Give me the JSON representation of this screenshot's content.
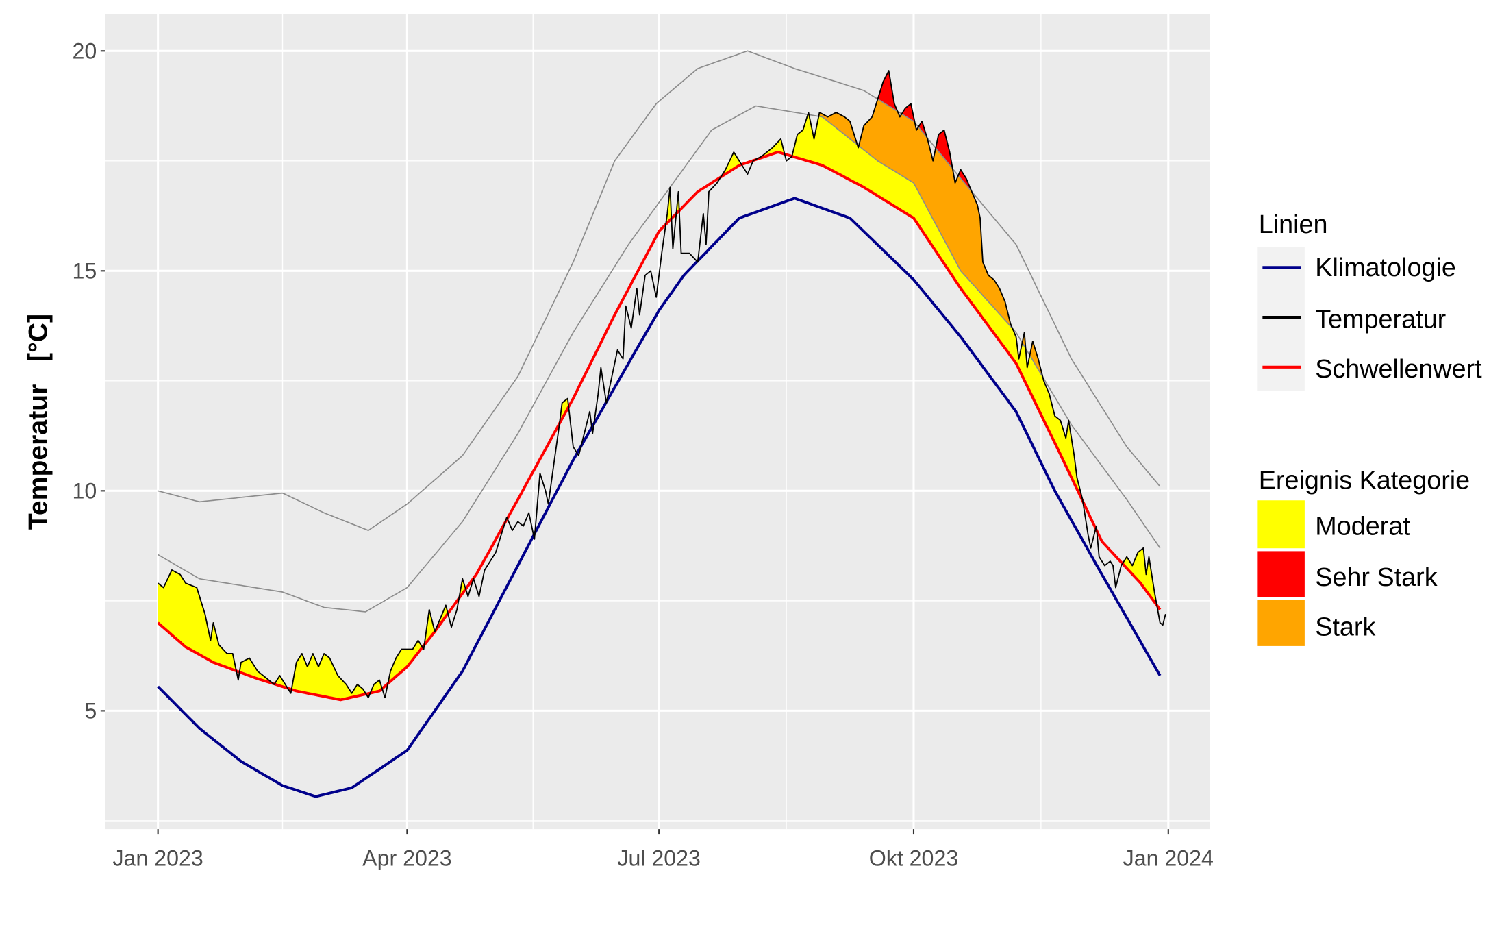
{
  "chart_data": {
    "type": "line",
    "title": "",
    "xlabel": "",
    "ylabel": "Temperatur   [°C]",
    "xlim_days": [
      -19,
      380
    ],
    "ylim": [
      2.31,
      20.83
    ],
    "grid": true,
    "x_ticks": [
      {
        "day": 0,
        "label": "Jan 2023"
      },
      {
        "day": 90,
        "label": "Apr 2023"
      },
      {
        "day": 181,
        "label": "Jul 2023"
      },
      {
        "day": 273,
        "label": "Okt 2023"
      },
      {
        "day": 365,
        "label": "Jan 2024"
      }
    ],
    "x_minor_days": [
      45,
      135.5,
      227,
      319
    ],
    "y_ticks": [
      5,
      10,
      15,
      20
    ],
    "y_minor": [
      2.5,
      7.5,
      12.5,
      17.5
    ],
    "y_tick_labels": [
      "5",
      "10",
      "15",
      "20"
    ],
    "colors": {
      "klimatologie": "#00008b",
      "temperatur": "#000000",
      "schwellenwert": "#ff0000",
      "guide": "#8c8c8c",
      "moderat": "#ffff00",
      "stark": "#ffa500",
      "sehr_stark": "#ff0000",
      "panel": "#ebebeb"
    },
    "series": [
      {
        "name": "Klimatologie",
        "points": [
          [
            0,
            5.55
          ],
          [
            15,
            4.6
          ],
          [
            30,
            3.85
          ],
          [
            45,
            3.3
          ],
          [
            57,
            3.05
          ],
          [
            70,
            3.25
          ],
          [
            90,
            4.1
          ],
          [
            110,
            5.9
          ],
          [
            130,
            8.3
          ],
          [
            150,
            10.7
          ],
          [
            170,
            12.9
          ],
          [
            181,
            14.1
          ],
          [
            190,
            14.9
          ],
          [
            210,
            16.2
          ],
          [
            230,
            16.65
          ],
          [
            250,
            16.2
          ],
          [
            273,
            14.8
          ],
          [
            290,
            13.5
          ],
          [
            310,
            11.8
          ],
          [
            324,
            10.0
          ],
          [
            341,
            8.1
          ],
          [
            362,
            5.8
          ]
        ]
      },
      {
        "name": "Schwellenwert",
        "points": [
          [
            0,
            7.0
          ],
          [
            10,
            6.45
          ],
          [
            20,
            6.1
          ],
          [
            35,
            5.75
          ],
          [
            50,
            5.45
          ],
          [
            66,
            5.25
          ],
          [
            80,
            5.45
          ],
          [
            90,
            6.0
          ],
          [
            100,
            6.8
          ],
          [
            115,
            8.1
          ],
          [
            130,
            9.8
          ],
          [
            150,
            12.1
          ],
          [
            165,
            14.0
          ],
          [
            181,
            15.9
          ],
          [
            195,
            16.8
          ],
          [
            210,
            17.4
          ],
          [
            224,
            17.7
          ],
          [
            240,
            17.4
          ],
          [
            255,
            16.9
          ],
          [
            273,
            16.2
          ],
          [
            290,
            14.6
          ],
          [
            310,
            12.9
          ],
          [
            327,
            10.7
          ],
          [
            341,
            8.85
          ],
          [
            355,
            7.9
          ],
          [
            362,
            7.3
          ]
        ]
      },
      {
        "name": "Stark-Grenze",
        "points": [
          [
            0,
            8.55
          ],
          [
            15,
            8.0
          ],
          [
            45,
            7.7
          ],
          [
            60,
            7.35
          ],
          [
            75,
            7.25
          ],
          [
            90,
            7.8
          ],
          [
            110,
            9.3
          ],
          [
            130,
            11.3
          ],
          [
            150,
            13.6
          ],
          [
            170,
            15.6
          ],
          [
            185,
            16.9
          ],
          [
            200,
            18.2
          ],
          [
            216,
            18.75
          ],
          [
            240,
            18.5
          ],
          [
            260,
            17.5
          ],
          [
            273,
            17.0
          ],
          [
            290,
            15.0
          ],
          [
            310,
            13.6
          ],
          [
            330,
            11.5
          ],
          [
            350,
            9.8
          ],
          [
            362,
            8.7
          ]
        ]
      },
      {
        "name": "Sehr-Stark-Grenze",
        "points": [
          [
            0,
            10.0
          ],
          [
            15,
            9.75
          ],
          [
            30,
            9.85
          ],
          [
            45,
            9.95
          ],
          [
            60,
            9.5
          ],
          [
            76,
            9.1
          ],
          [
            90,
            9.7
          ],
          [
            110,
            10.8
          ],
          [
            130,
            12.6
          ],
          [
            150,
            15.2
          ],
          [
            165,
            17.5
          ],
          [
            180,
            18.8
          ],
          [
            195,
            19.6
          ],
          [
            213,
            20.0
          ],
          [
            230,
            19.6
          ],
          [
            255,
            19.1
          ],
          [
            273,
            18.4
          ],
          [
            290,
            17.1
          ],
          [
            310,
            15.6
          ],
          [
            330,
            13.0
          ],
          [
            350,
            11.0
          ],
          [
            362,
            10.1
          ]
        ]
      },
      {
        "name": "Temperatur",
        "points": [
          [
            0,
            7.9
          ],
          [
            2,
            7.8
          ],
          [
            5,
            8.2
          ],
          [
            8,
            8.1
          ],
          [
            10,
            7.9
          ],
          [
            14,
            7.8
          ],
          [
            17,
            7.2
          ],
          [
            19,
            6.6
          ],
          [
            20,
            7.0
          ],
          [
            22,
            6.5
          ],
          [
            25,
            6.3
          ],
          [
            27,
            6.3
          ],
          [
            29,
            5.7
          ],
          [
            30,
            6.1
          ],
          [
            33,
            6.2
          ],
          [
            36,
            5.9
          ],
          [
            40,
            5.7
          ],
          [
            42,
            5.6
          ],
          [
            44,
            5.8
          ],
          [
            46,
            5.6
          ],
          [
            48,
            5.4
          ],
          [
            50,
            6.1
          ],
          [
            52,
            6.3
          ],
          [
            54,
            6.0
          ],
          [
            56,
            6.3
          ],
          [
            58,
            6.0
          ],
          [
            60,
            6.3
          ],
          [
            62,
            6.2
          ],
          [
            65,
            5.8
          ],
          [
            68,
            5.6
          ],
          [
            70,
            5.4
          ],
          [
            72,
            5.6
          ],
          [
            74,
            5.5
          ],
          [
            76,
            5.3
          ],
          [
            78,
            5.6
          ],
          [
            80,
            5.7
          ],
          [
            82,
            5.3
          ],
          [
            84,
            5.9
          ],
          [
            86,
            6.2
          ],
          [
            88,
            6.4
          ],
          [
            92,
            6.4
          ],
          [
            94,
            6.6
          ],
          [
            96,
            6.4
          ],
          [
            98,
            7.3
          ],
          [
            100,
            6.8
          ],
          [
            102,
            7.1
          ],
          [
            104,
            7.4
          ],
          [
            106,
            6.9
          ],
          [
            108,
            7.3
          ],
          [
            110,
            8.0
          ],
          [
            112,
            7.6
          ],
          [
            114,
            8.0
          ],
          [
            116,
            7.6
          ],
          [
            118,
            8.2
          ],
          [
            120,
            8.4
          ],
          [
            122,
            8.6
          ],
          [
            124,
            9.0
          ],
          [
            126,
            9.4
          ],
          [
            128,
            9.1
          ],
          [
            130,
            9.3
          ],
          [
            132,
            9.2
          ],
          [
            134,
            9.5
          ],
          [
            136,
            8.9
          ],
          [
            138,
            10.4
          ],
          [
            140,
            10.0
          ],
          [
            141,
            9.7
          ],
          [
            143,
            10.6
          ],
          [
            145,
            11.5
          ],
          [
            146,
            12.0
          ],
          [
            148,
            12.1
          ],
          [
            150,
            11.0
          ],
          [
            152,
            10.8
          ],
          [
            154,
            11.3
          ],
          [
            156,
            11.8
          ],
          [
            157,
            11.3
          ],
          [
            159,
            12.2
          ],
          [
            160,
            12.8
          ],
          [
            162,
            12.0
          ],
          [
            164,
            12.6
          ],
          [
            166,
            13.2
          ],
          [
            168,
            13.0
          ],
          [
            169,
            14.2
          ],
          [
            171,
            13.7
          ],
          [
            173,
            14.6
          ],
          [
            174,
            14.0
          ],
          [
            176,
            14.9
          ],
          [
            178,
            15.0
          ],
          [
            180,
            14.4
          ],
          [
            182,
            15.4
          ],
          [
            184,
            16.3
          ],
          [
            185,
            16.9
          ],
          [
            186,
            15.5
          ],
          [
            188,
            16.8
          ],
          [
            189,
            15.4
          ],
          [
            192,
            15.4
          ],
          [
            195,
            15.2
          ],
          [
            197,
            16.3
          ],
          [
            198,
            15.6
          ],
          [
            199,
            16.8
          ],
          [
            202,
            17.0
          ],
          [
            205,
            17.3
          ],
          [
            208,
            17.7
          ],
          [
            211,
            17.4
          ],
          [
            213,
            17.2
          ],
          [
            215,
            17.5
          ],
          [
            218,
            17.6
          ],
          [
            222,
            17.8
          ],
          [
            225,
            18.0
          ],
          [
            227,
            17.5
          ],
          [
            229,
            17.6
          ],
          [
            231,
            18.1
          ],
          [
            233,
            18.2
          ],
          [
            235,
            18.6
          ],
          [
            237,
            18.0
          ],
          [
            239,
            18.6
          ],
          [
            242,
            18.5
          ],
          [
            245,
            18.6
          ],
          [
            248,
            18.5
          ],
          [
            250,
            18.4
          ],
          [
            252,
            18.0
          ],
          [
            253,
            17.8
          ],
          [
            255,
            18.3
          ],
          [
            258,
            18.5
          ],
          [
            260,
            18.9
          ],
          [
            262,
            19.3
          ],
          [
            264,
            19.55
          ],
          [
            266,
            18.8
          ],
          [
            268,
            18.5
          ],
          [
            270,
            18.7
          ],
          [
            272,
            18.8
          ],
          [
            274,
            18.2
          ],
          [
            276,
            18.4
          ],
          [
            278,
            18.0
          ],
          [
            280,
            17.5
          ],
          [
            282,
            18.1
          ],
          [
            284,
            18.2
          ],
          [
            286,
            17.7
          ],
          [
            288,
            17.0
          ],
          [
            290,
            17.3
          ],
          [
            292,
            17.1
          ],
          [
            294,
            16.8
          ],
          [
            296,
            16.5
          ],
          [
            297,
            16.2
          ],
          [
            298,
            15.2
          ],
          [
            300,
            14.9
          ],
          [
            302,
            14.8
          ],
          [
            304,
            14.6
          ],
          [
            306,
            14.3
          ],
          [
            308,
            13.8
          ],
          [
            310,
            13.5
          ],
          [
            311,
            13.0
          ],
          [
            313,
            13.6
          ],
          [
            314,
            12.8
          ],
          [
            316,
            13.4
          ],
          [
            318,
            13.0
          ],
          [
            320,
            12.5
          ],
          [
            322,
            12.2
          ],
          [
            324,
            11.7
          ],
          [
            326,
            11.6
          ],
          [
            328,
            11.2
          ],
          [
            329,
            11.6
          ],
          [
            331,
            10.8
          ],
          [
            332,
            10.3
          ],
          [
            334,
            9.8
          ],
          [
            336,
            9.0
          ],
          [
            337,
            8.7
          ],
          [
            339,
            9.2
          ],
          [
            340,
            8.5
          ],
          [
            342,
            8.3
          ],
          [
            344,
            8.4
          ],
          [
            345,
            8.3
          ],
          [
            346,
            7.8
          ],
          [
            348,
            8.3
          ],
          [
            350,
            8.5
          ],
          [
            352,
            8.3
          ],
          [
            354,
            8.6
          ],
          [
            356,
            8.7
          ],
          [
            357,
            8.1
          ],
          [
            358,
            8.5
          ],
          [
            360,
            7.7
          ],
          [
            362,
            7.0
          ],
          [
            363,
            6.95
          ],
          [
            364,
            7.2
          ]
        ]
      }
    ],
    "legend": {
      "placement": "right",
      "lines_title": "Linien",
      "lines": [
        "Klimatologie",
        "Temperatur",
        "Schwellenwert"
      ],
      "events_title": "Ereignis Kategorie",
      "events": [
        "Moderat",
        "Sehr Stark",
        "Stark"
      ]
    }
  }
}
